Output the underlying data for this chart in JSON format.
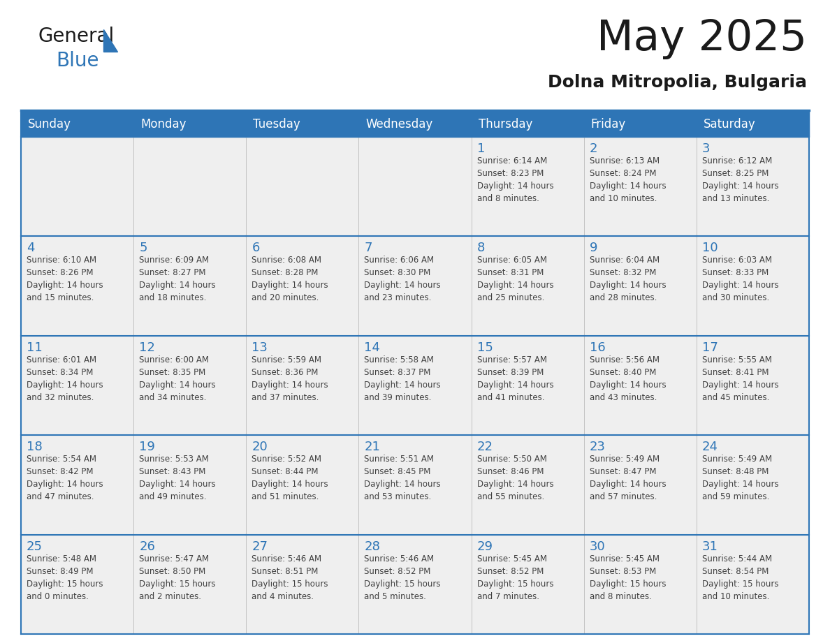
{
  "title": "May 2025",
  "subtitle": "Dolna Mitropolia, Bulgaria",
  "header_bg": "#2E75B6",
  "header_text_color": "#FFFFFF",
  "cell_bg": "#EFEFEF",
  "day_number_color": "#2E75B6",
  "cell_text_color": "#404040",
  "border_color": "#2E75B6",
  "days_of_week": [
    "Sunday",
    "Monday",
    "Tuesday",
    "Wednesday",
    "Thursday",
    "Friday",
    "Saturday"
  ],
  "weeks": [
    [
      {
        "day": "",
        "info": ""
      },
      {
        "day": "",
        "info": ""
      },
      {
        "day": "",
        "info": ""
      },
      {
        "day": "",
        "info": ""
      },
      {
        "day": "1",
        "info": "Sunrise: 6:14 AM\nSunset: 8:23 PM\nDaylight: 14 hours\nand 8 minutes."
      },
      {
        "day": "2",
        "info": "Sunrise: 6:13 AM\nSunset: 8:24 PM\nDaylight: 14 hours\nand 10 minutes."
      },
      {
        "day": "3",
        "info": "Sunrise: 6:12 AM\nSunset: 8:25 PM\nDaylight: 14 hours\nand 13 minutes."
      }
    ],
    [
      {
        "day": "4",
        "info": "Sunrise: 6:10 AM\nSunset: 8:26 PM\nDaylight: 14 hours\nand 15 minutes."
      },
      {
        "day": "5",
        "info": "Sunrise: 6:09 AM\nSunset: 8:27 PM\nDaylight: 14 hours\nand 18 minutes."
      },
      {
        "day": "6",
        "info": "Sunrise: 6:08 AM\nSunset: 8:28 PM\nDaylight: 14 hours\nand 20 minutes."
      },
      {
        "day": "7",
        "info": "Sunrise: 6:06 AM\nSunset: 8:30 PM\nDaylight: 14 hours\nand 23 minutes."
      },
      {
        "day": "8",
        "info": "Sunrise: 6:05 AM\nSunset: 8:31 PM\nDaylight: 14 hours\nand 25 minutes."
      },
      {
        "day": "9",
        "info": "Sunrise: 6:04 AM\nSunset: 8:32 PM\nDaylight: 14 hours\nand 28 minutes."
      },
      {
        "day": "10",
        "info": "Sunrise: 6:03 AM\nSunset: 8:33 PM\nDaylight: 14 hours\nand 30 minutes."
      }
    ],
    [
      {
        "day": "11",
        "info": "Sunrise: 6:01 AM\nSunset: 8:34 PM\nDaylight: 14 hours\nand 32 minutes."
      },
      {
        "day": "12",
        "info": "Sunrise: 6:00 AM\nSunset: 8:35 PM\nDaylight: 14 hours\nand 34 minutes."
      },
      {
        "day": "13",
        "info": "Sunrise: 5:59 AM\nSunset: 8:36 PM\nDaylight: 14 hours\nand 37 minutes."
      },
      {
        "day": "14",
        "info": "Sunrise: 5:58 AM\nSunset: 8:37 PM\nDaylight: 14 hours\nand 39 minutes."
      },
      {
        "day": "15",
        "info": "Sunrise: 5:57 AM\nSunset: 8:39 PM\nDaylight: 14 hours\nand 41 minutes."
      },
      {
        "day": "16",
        "info": "Sunrise: 5:56 AM\nSunset: 8:40 PM\nDaylight: 14 hours\nand 43 minutes."
      },
      {
        "day": "17",
        "info": "Sunrise: 5:55 AM\nSunset: 8:41 PM\nDaylight: 14 hours\nand 45 minutes."
      }
    ],
    [
      {
        "day": "18",
        "info": "Sunrise: 5:54 AM\nSunset: 8:42 PM\nDaylight: 14 hours\nand 47 minutes."
      },
      {
        "day": "19",
        "info": "Sunrise: 5:53 AM\nSunset: 8:43 PM\nDaylight: 14 hours\nand 49 minutes."
      },
      {
        "day": "20",
        "info": "Sunrise: 5:52 AM\nSunset: 8:44 PM\nDaylight: 14 hours\nand 51 minutes."
      },
      {
        "day": "21",
        "info": "Sunrise: 5:51 AM\nSunset: 8:45 PM\nDaylight: 14 hours\nand 53 minutes."
      },
      {
        "day": "22",
        "info": "Sunrise: 5:50 AM\nSunset: 8:46 PM\nDaylight: 14 hours\nand 55 minutes."
      },
      {
        "day": "23",
        "info": "Sunrise: 5:49 AM\nSunset: 8:47 PM\nDaylight: 14 hours\nand 57 minutes."
      },
      {
        "day": "24",
        "info": "Sunrise: 5:49 AM\nSunset: 8:48 PM\nDaylight: 14 hours\nand 59 minutes."
      }
    ],
    [
      {
        "day": "25",
        "info": "Sunrise: 5:48 AM\nSunset: 8:49 PM\nDaylight: 15 hours\nand 0 minutes."
      },
      {
        "day": "26",
        "info": "Sunrise: 5:47 AM\nSunset: 8:50 PM\nDaylight: 15 hours\nand 2 minutes."
      },
      {
        "day": "27",
        "info": "Sunrise: 5:46 AM\nSunset: 8:51 PM\nDaylight: 15 hours\nand 4 minutes."
      },
      {
        "day": "28",
        "info": "Sunrise: 5:46 AM\nSunset: 8:52 PM\nDaylight: 15 hours\nand 5 minutes."
      },
      {
        "day": "29",
        "info": "Sunrise: 5:45 AM\nSunset: 8:52 PM\nDaylight: 15 hours\nand 7 minutes."
      },
      {
        "day": "30",
        "info": "Sunrise: 5:45 AM\nSunset: 8:53 PM\nDaylight: 15 hours\nand 8 minutes."
      },
      {
        "day": "31",
        "info": "Sunrise: 5:44 AM\nSunset: 8:54 PM\nDaylight: 15 hours\nand 10 minutes."
      }
    ]
  ]
}
